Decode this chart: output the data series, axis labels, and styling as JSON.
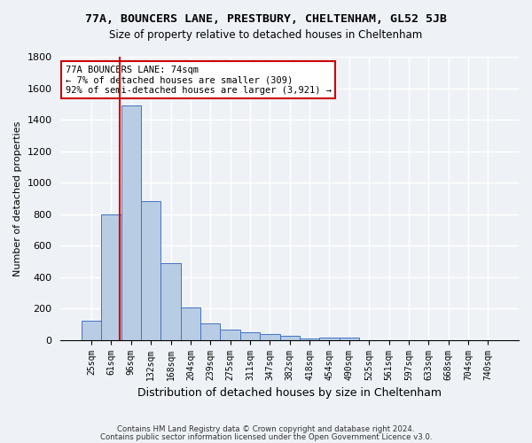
{
  "title1": "77A, BOUNCERS LANE, PRESTBURY, CHELTENHAM, GL52 5JB",
  "title2": "Size of property relative to detached houses in Cheltenham",
  "xlabel": "Distribution of detached houses by size in Cheltenham",
  "ylabel": "Number of detached properties",
  "footer1": "Contains HM Land Registry data © Crown copyright and database right 2024.",
  "footer2": "Contains public sector information licensed under the Open Government Licence v3.0.",
  "annotation_line1": "77A BOUNCERS LANE: 74sqm",
  "annotation_line2": "← 7% of detached houses are smaller (309)",
  "annotation_line3": "92% of semi-detached houses are larger (3,921) →",
  "bar_values": [
    120,
    800,
    1490,
    880,
    490,
    205,
    105,
    65,
    50,
    35,
    27,
    8,
    15,
    15,
    0,
    0,
    0,
    0,
    0,
    0,
    0
  ],
  "bar_color": "#b8cce4",
  "bar_edge_color": "#4472c4",
  "categories": [
    "25sqm",
    "61sqm",
    "96sqm",
    "132sqm",
    "168sqm",
    "204sqm",
    "239sqm",
    "275sqm",
    "311sqm",
    "347sqm",
    "382sqm",
    "418sqm",
    "454sqm",
    "490sqm",
    "525sqm",
    "561sqm",
    "597sqm",
    "633sqm",
    "668sqm",
    "704sqm",
    "740sqm"
  ],
  "ylim": [
    0,
    1800
  ],
  "yticks": [
    0,
    200,
    400,
    600,
    800,
    1000,
    1200,
    1400,
    1600,
    1800
  ],
  "red_line_x": 1.45,
  "background_color": "#eef2f7",
  "grid_color": "#ffffff",
  "annotation_box_color": "#ffffff",
  "annotation_box_edge": "#cc0000"
}
